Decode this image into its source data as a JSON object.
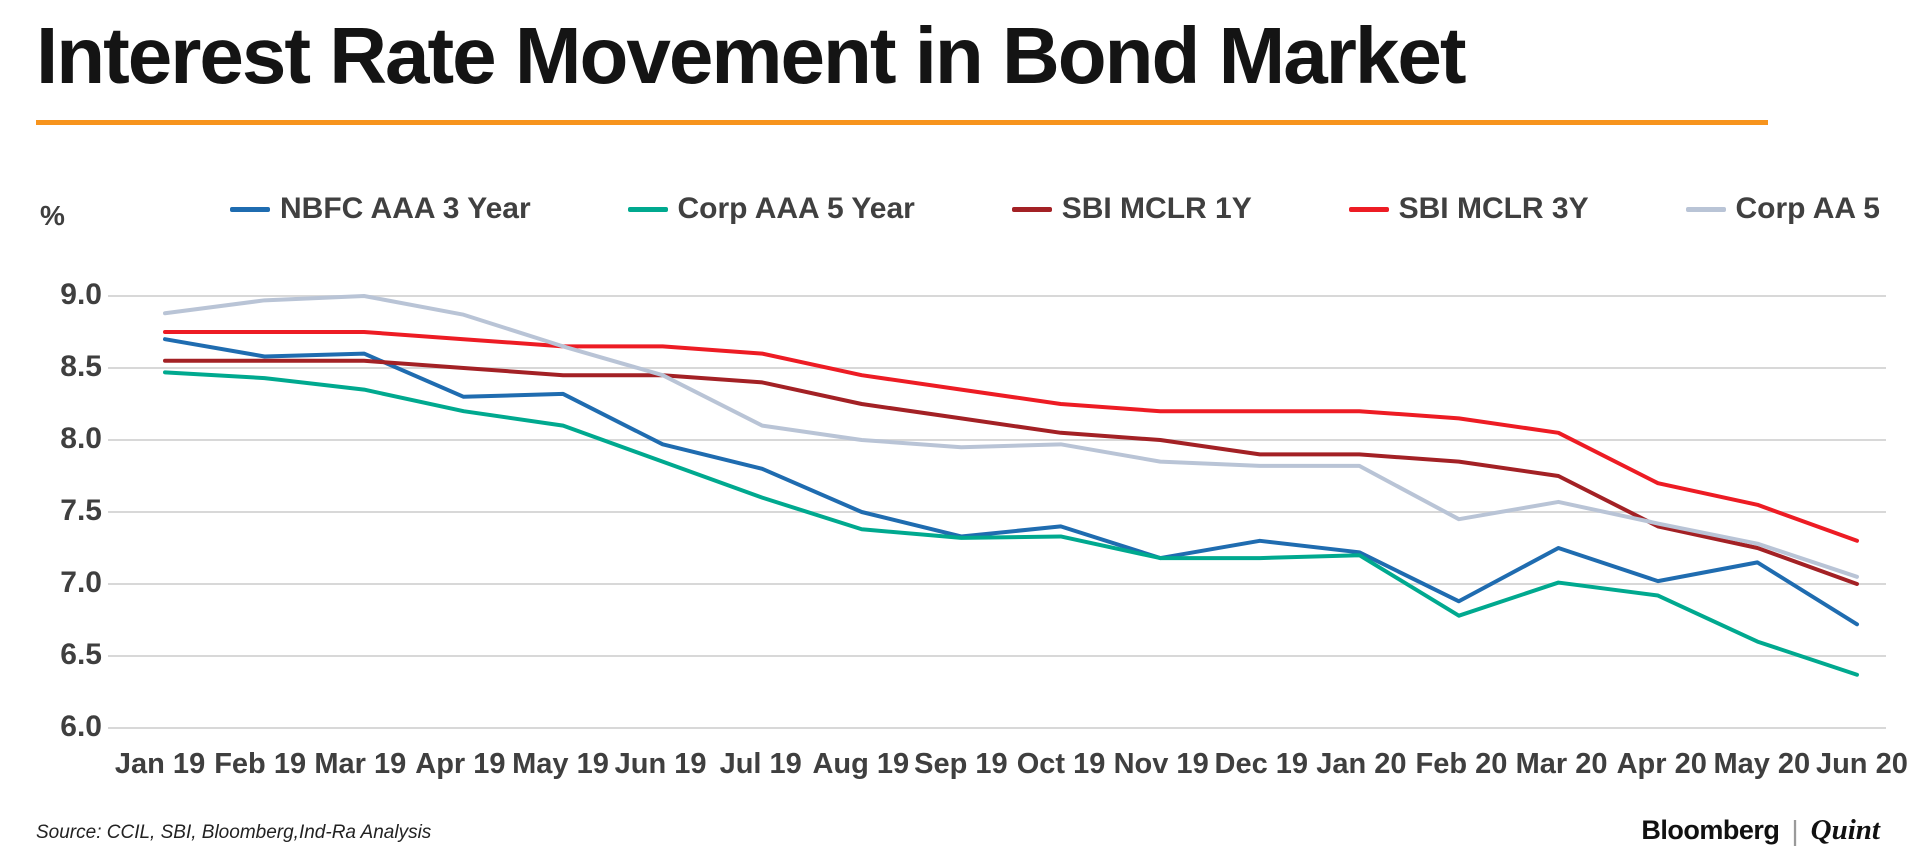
{
  "header": {
    "title": "Interest Rate Movement in Bond Market",
    "accent_color": "#f7941d"
  },
  "footer": {
    "source": "Source: CCIL, SBI, Bloomberg,Ind-Ra Analysis",
    "brand": {
      "bloomberg": "Bloomberg",
      "separator": "|",
      "quint": "Quint"
    }
  },
  "chart_data": {
    "type": "line",
    "title": "Interest Rate Movement in Bond Market",
    "xlabel": "",
    "ylabel": "%",
    "ylim": [
      6.0,
      9.0
    ],
    "yticks": [
      9.0,
      8.5,
      8.0,
      7.5,
      7.0,
      6.5,
      6.0
    ],
    "grid": "horizontal",
    "legend_position": "top",
    "categories": [
      "Jan 19",
      "Feb 19",
      "Mar 19",
      "Apr 19",
      "May 19",
      "Jun 19",
      "Jul 19",
      "Aug 19",
      "Sep 19",
      "Oct 19",
      "Nov 19",
      "Dec 19",
      "Jan 20",
      "Feb 20",
      "Mar 20",
      "Apr 20",
      "May 20",
      "Jun 20"
    ],
    "series": [
      {
        "name": "NBFC AAA 3 Year",
        "color": "#1f6cb0",
        "values": [
          8.7,
          8.58,
          8.6,
          8.3,
          8.32,
          7.97,
          7.8,
          7.5,
          7.33,
          7.4,
          7.18,
          7.3,
          7.22,
          6.88,
          7.25,
          7.02,
          7.15,
          6.72
        ]
      },
      {
        "name": "Corp AAA 5 Year",
        "color": "#00a98f",
        "values": [
          8.47,
          8.43,
          8.35,
          8.2,
          8.1,
          7.85,
          7.6,
          7.38,
          7.32,
          7.33,
          7.18,
          7.18,
          7.2,
          6.78,
          7.01,
          6.92,
          6.6,
          6.37
        ]
      },
      {
        "name": "SBI MCLR 1Y",
        "color": "#a32125",
        "values": [
          8.55,
          8.55,
          8.55,
          8.5,
          8.45,
          8.45,
          8.4,
          8.25,
          8.15,
          8.05,
          8.0,
          7.9,
          7.9,
          7.85,
          7.75,
          7.4,
          7.25,
          7.0
        ]
      },
      {
        "name": "SBI MCLR 3Y",
        "color": "#ed1c24",
        "values": [
          8.75,
          8.75,
          8.75,
          8.7,
          8.65,
          8.65,
          8.6,
          8.45,
          8.35,
          8.25,
          8.2,
          8.2,
          8.2,
          8.15,
          8.05,
          7.7,
          7.55,
          7.3
        ]
      },
      {
        "name": "Corp AA 5",
        "color": "#b9c4d6",
        "values": [
          8.88,
          8.97,
          9.0,
          8.87,
          8.65,
          8.45,
          8.1,
          8.0,
          7.95,
          7.97,
          7.85,
          7.82,
          7.82,
          7.45,
          7.57,
          7.42,
          7.28,
          7.05
        ]
      }
    ]
  }
}
